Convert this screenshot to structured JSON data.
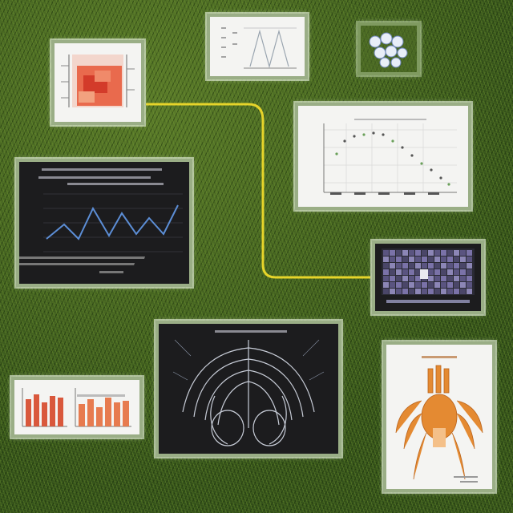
{
  "scene": {
    "background": "grass-texture",
    "connector_color": "#e6d42a"
  },
  "panels": [
    {
      "id": "heatmap-panel",
      "theme": "light"
    },
    {
      "id": "sawtooth-chart-panel",
      "theme": "light"
    },
    {
      "id": "cluster-icon-panel",
      "theme": "none"
    },
    {
      "id": "scatter-chart-panel",
      "theme": "light"
    },
    {
      "id": "line-chart-panel",
      "theme": "dark"
    },
    {
      "id": "grid-map-panel",
      "theme": "dark"
    },
    {
      "id": "anatomy-xray-panel",
      "theme": "dark"
    },
    {
      "id": "bar-chart-panel",
      "theme": "light"
    },
    {
      "id": "orange-anatomy-panel",
      "theme": "light"
    }
  ]
}
